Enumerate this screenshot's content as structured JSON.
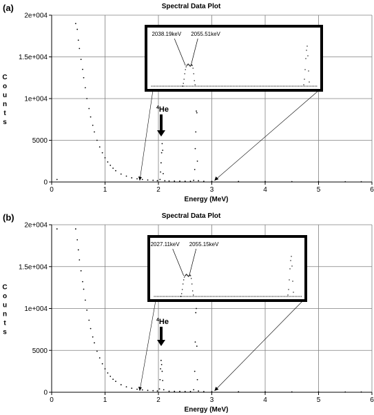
{
  "charts": [
    {
      "panel_label": "(a)",
      "title": "Spectral Data Plot",
      "xlabel": "Energy (MeV)",
      "ylabel": "Counts",
      "he_label": "4He",
      "inset_labels": [
        "2038.19keV",
        "2055.51keV"
      ]
    },
    {
      "panel_label": "(b)",
      "title": "Spectral Data Plot",
      "xlabel": "Energy (MeV)",
      "ylabel": "Counts",
      "he_label": "4He",
      "inset_labels": [
        "2027.11keV",
        "2055.15keV"
      ]
    }
  ],
  "chart_data": [
    {
      "type": "scatter",
      "title": "Spectral Data Plot",
      "xlabel": "Energy (MeV)",
      "ylabel": "Counts",
      "xlim": [
        0,
        6
      ],
      "ylim": [
        0,
        20000
      ],
      "x_ticks": [
        0,
        1,
        2,
        3,
        4,
        5,
        6
      ],
      "y_ticks": [
        0,
        5000,
        10000,
        15000,
        20000
      ],
      "y_tick_labels": [
        "0",
        "5000",
        "1e+004",
        "1.5e+004",
        "2e+004"
      ],
      "grid": true,
      "series": [
        {
          "points": [
            [
              0.1,
              300
            ],
            [
              0.45,
              19000
            ],
            [
              0.48,
              18300
            ],
            [
              0.5,
              17000
            ],
            [
              0.52,
              16000
            ],
            [
              0.55,
              14700
            ],
            [
              0.58,
              13500
            ],
            [
              0.6,
              12500
            ],
            [
              0.63,
              11300
            ],
            [
              0.66,
              10000
            ],
            [
              0.7,
              8800
            ],
            [
              0.73,
              7800
            ],
            [
              0.77,
              6800
            ],
            [
              0.8,
              6000
            ],
            [
              0.85,
              5000
            ],
            [
              0.9,
              4200
            ],
            [
              0.95,
              3500
            ],
            [
              1.0,
              2900
            ],
            [
              1.05,
              2400
            ],
            [
              1.1,
              2000
            ],
            [
              1.15,
              1650
            ],
            [
              1.2,
              1350
            ],
            [
              1.3,
              950
            ],
            [
              1.4,
              700
            ],
            [
              1.5,
              500
            ],
            [
              1.6,
              380
            ],
            [
              1.7,
              300
            ],
            [
              1.8,
              240
            ],
            [
              1.9,
              200
            ],
            [
              1.98,
              160
            ],
            [
              2.03,
              300
            ],
            [
              2.04,
              1200
            ],
            [
              2.05,
              2300
            ],
            [
              2.06,
              3500
            ],
            [
              2.07,
              4600
            ],
            [
              2.08,
              3800
            ],
            [
              2.09,
              1000
            ],
            [
              2.12,
              150
            ],
            [
              2.2,
              120
            ],
            [
              2.3,
              110
            ],
            [
              2.4,
              100
            ],
            [
              2.5,
              95
            ],
            [
              2.6,
              90
            ],
            [
              2.66,
              200
            ],
            [
              2.68,
              1500
            ],
            [
              2.69,
              4000
            ],
            [
              2.7,
              6000
            ],
            [
              2.71,
              8500
            ],
            [
              2.72,
              8300
            ],
            [
              2.73,
              2500
            ],
            [
              2.75,
              150
            ],
            [
              2.85,
              80
            ],
            [
              3.0,
              70
            ],
            [
              3.5,
              55
            ],
            [
              4.0,
              45
            ],
            [
              4.5,
              40
            ],
            [
              5.0,
              35
            ],
            [
              5.5,
              30
            ],
            [
              5.8,
              25
            ]
          ]
        }
      ],
      "inset": {
        "peaks": [
          {
            "label": "2038.19keV",
            "energy_kev": 2038.19
          },
          {
            "label": "2055.51keV",
            "energy_kev": 2055.51
          }
        ]
      },
      "annotations": [
        "4He",
        "2038.19keV",
        "2055.51keV"
      ]
    },
    {
      "type": "scatter",
      "title": "Spectral Data Plot",
      "xlabel": "Energy (MeV)",
      "ylabel": "Counts",
      "xlim": [
        0,
        6
      ],
      "ylim": [
        0,
        20000
      ],
      "x_ticks": [
        0,
        1,
        2,
        3,
        4,
        5,
        6
      ],
      "y_ticks": [
        0,
        5000,
        10000,
        15000,
        20000
      ],
      "y_tick_labels": [
        "0",
        "5000",
        "1e+004",
        "1.5e+004",
        "2e+004"
      ],
      "grid": true,
      "series": [
        {
          "points": [
            [
              0.1,
              19500
            ],
            [
              0.45,
              19500
            ],
            [
              0.48,
              18200
            ],
            [
              0.5,
              17000
            ],
            [
              0.52,
              15800
            ],
            [
              0.55,
              14500
            ],
            [
              0.58,
              13200
            ],
            [
              0.6,
              12300
            ],
            [
              0.63,
              11000
            ],
            [
              0.66,
              9800
            ],
            [
              0.7,
              8600
            ],
            [
              0.73,
              7600
            ],
            [
              0.77,
              6600
            ],
            [
              0.8,
              5900
            ],
            [
              0.85,
              4900
            ],
            [
              0.9,
              4100
            ],
            [
              0.95,
              3400
            ],
            [
              1.0,
              2800
            ],
            [
              1.05,
              2300
            ],
            [
              1.1,
              1900
            ],
            [
              1.15,
              1550
            ],
            [
              1.2,
              1300
            ],
            [
              1.3,
              900
            ],
            [
              1.4,
              650
            ],
            [
              1.5,
              480
            ],
            [
              1.6,
              360
            ],
            [
              1.7,
              280
            ],
            [
              1.8,
              220
            ],
            [
              1.9,
              190
            ],
            [
              1.98,
              150
            ],
            [
              2.02,
              400
            ],
            [
              2.03,
              1500
            ],
            [
              2.04,
              2800
            ],
            [
              2.05,
              3800
            ],
            [
              2.06,
              3300
            ],
            [
              2.07,
              2500
            ],
            [
              2.08,
              1400
            ],
            [
              2.1,
              300
            ],
            [
              2.2,
              120
            ],
            [
              2.3,
              110
            ],
            [
              2.4,
              100
            ],
            [
              2.5,
              95
            ],
            [
              2.6,
              90
            ],
            [
              2.66,
              300
            ],
            [
              2.68,
              2500
            ],
            [
              2.69,
              6000
            ],
            [
              2.7,
              9500
            ],
            [
              2.71,
              10000
            ],
            [
              2.72,
              5500
            ],
            [
              2.73,
              1500
            ],
            [
              2.75,
              150
            ],
            [
              2.85,
              80
            ],
            [
              3.0,
              70
            ],
            [
              3.5,
              55
            ],
            [
              4.0,
              45
            ],
            [
              4.5,
              40
            ],
            [
              5.0,
              35
            ],
            [
              5.5,
              30
            ],
            [
              5.8,
              25
            ]
          ]
        }
      ],
      "inset": {
        "peaks": [
          {
            "label": "2027.11keV",
            "energy_kev": 2027.11
          },
          {
            "label": "2055.15keV",
            "energy_kev": 2055.15
          }
        ]
      },
      "annotations": [
        "4He",
        "2027.11keV",
        "2055.15keV"
      ]
    }
  ]
}
